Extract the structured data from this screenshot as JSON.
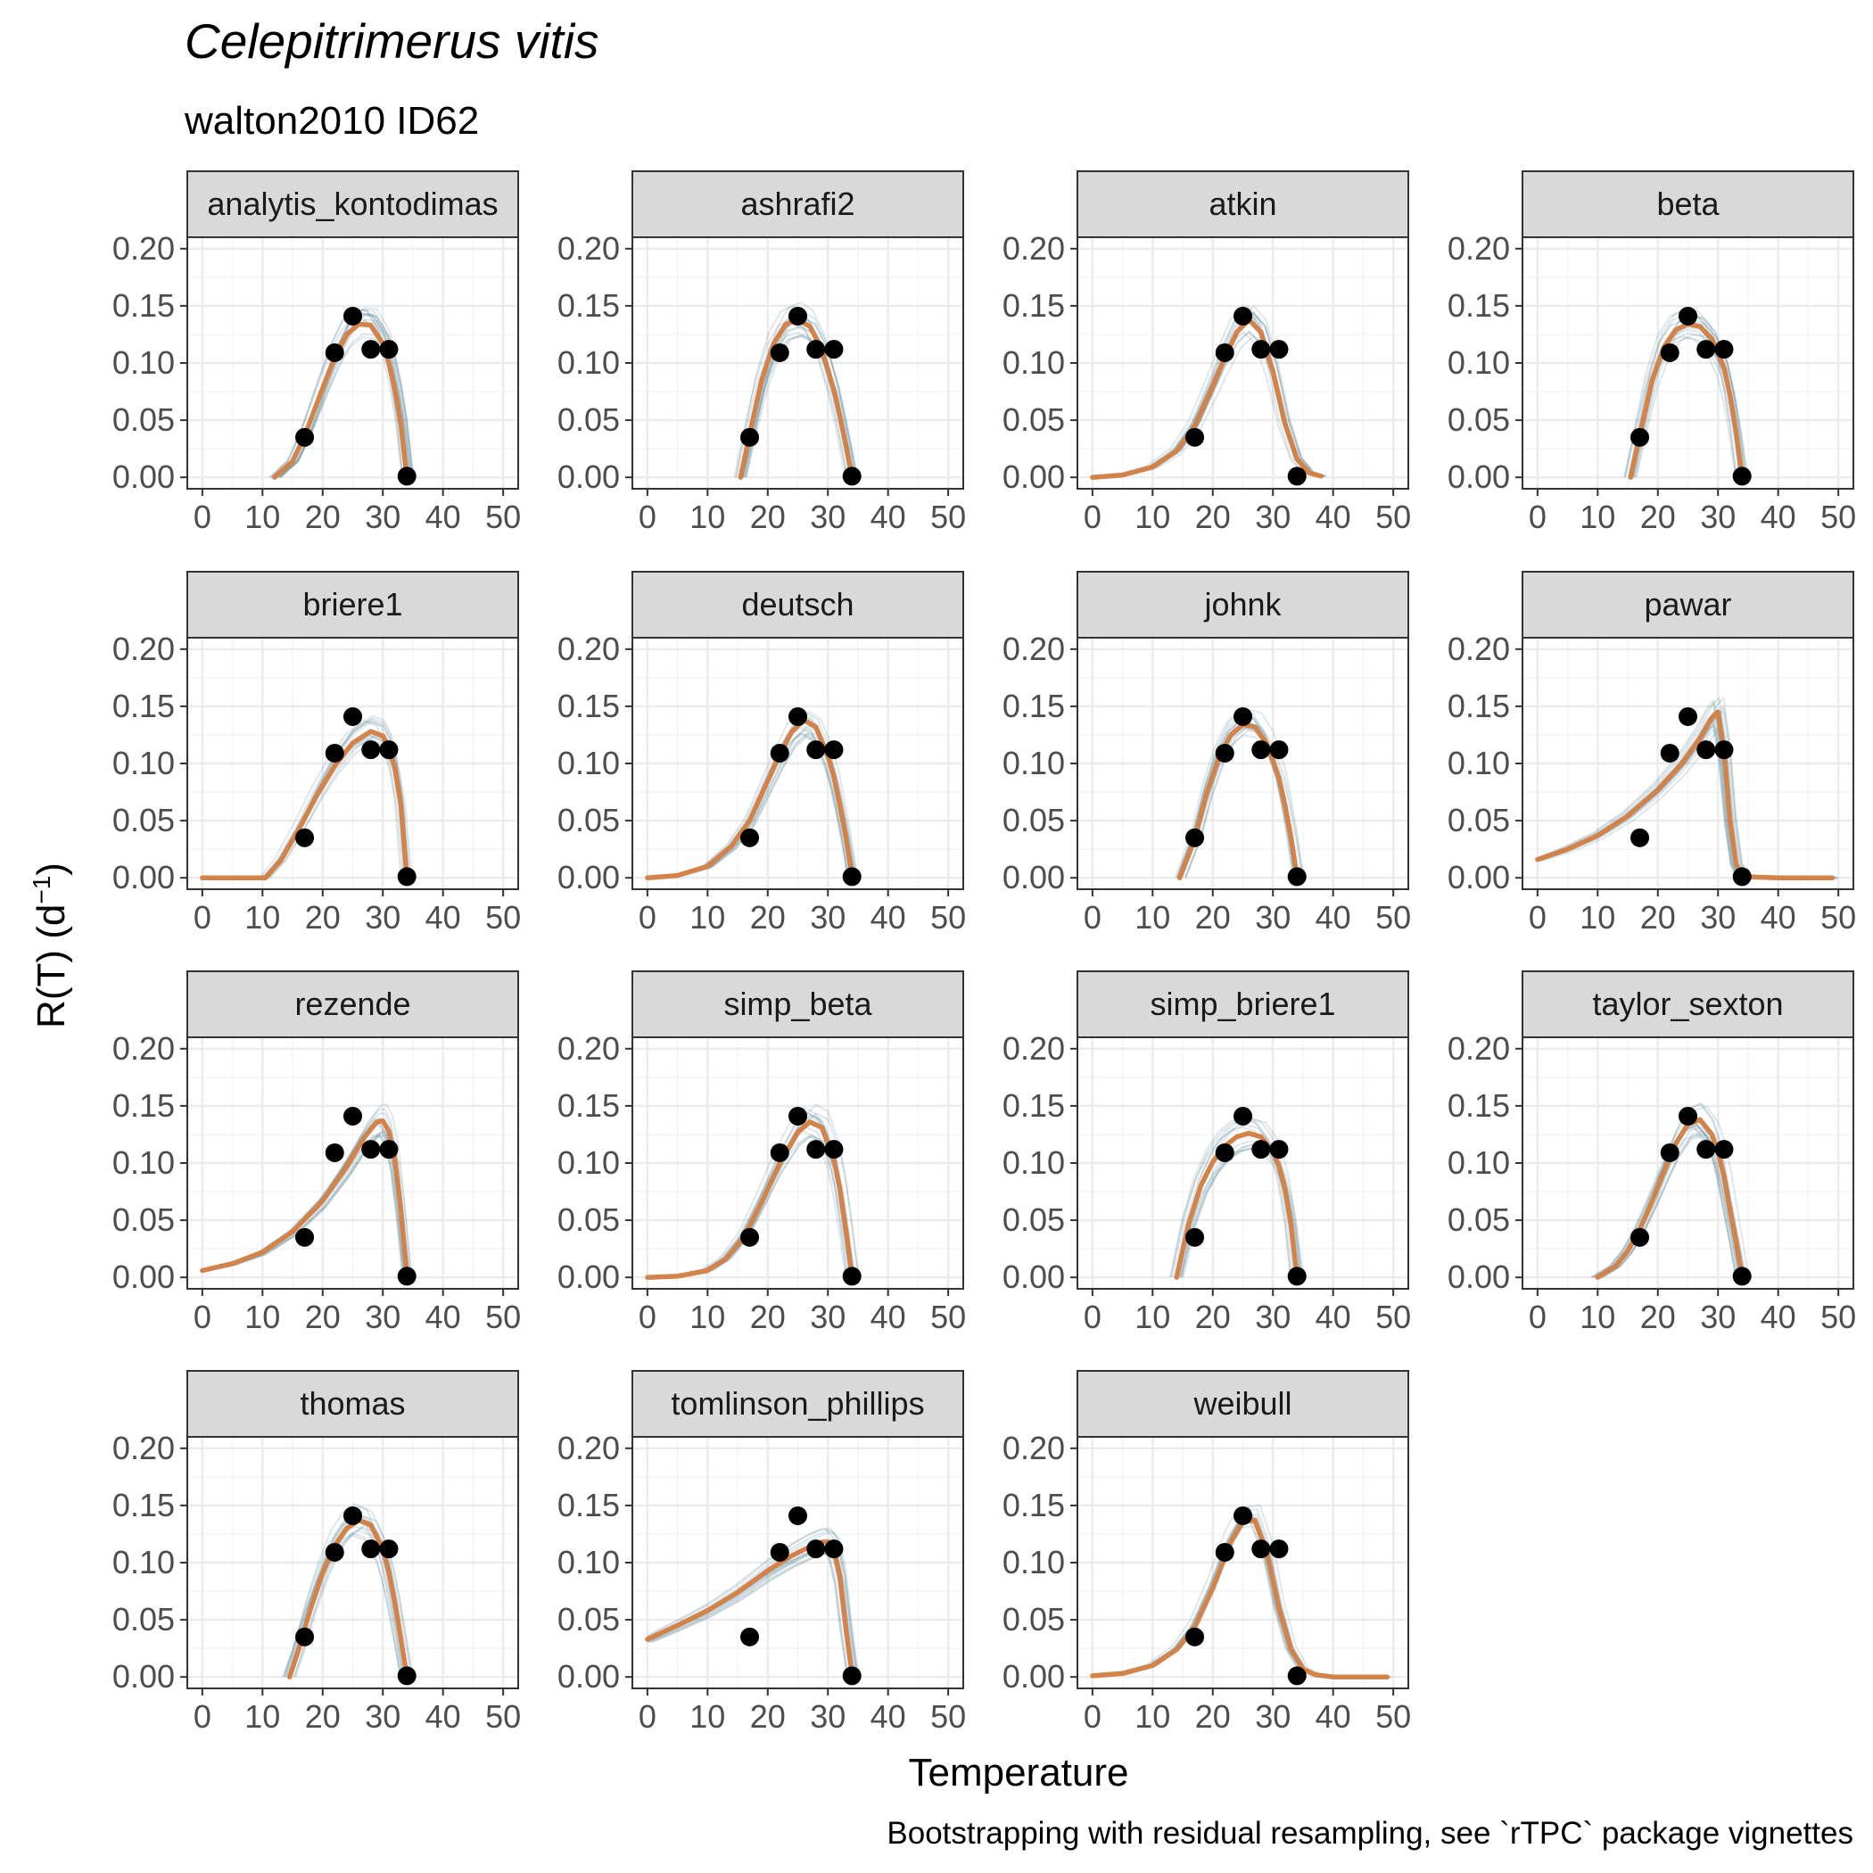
{
  "chart_data": {
    "type": "line",
    "title": "Celepitrimerus vitis",
    "subtitle": "walton2010 ID62",
    "xlabel": "Temperature",
    "ylabel": "R(T) (d",
    "ylabel_superscript": "−1",
    "ylabel_close": ")",
    "caption": "Bootstrapping with residual resampling, see `rTPC` package vignettes",
    "xlim": [
      0,
      50
    ],
    "ylim": [
      0,
      0.2
    ],
    "x_ticks": [
      "0",
      "10",
      "20",
      "30",
      "40",
      "50"
    ],
    "y_ticks": [
      "0.00",
      "0.05",
      "0.10",
      "0.15",
      "0.20"
    ],
    "grid": true,
    "colors": {
      "fit": "#d2834a",
      "bootstrap": "#4a7c92",
      "points": "#000000",
      "strip_fill": "#d9d9d9"
    },
    "observations": {
      "x": [
        17,
        22,
        25,
        28,
        31,
        34
      ],
      "y": [
        0.035,
        0.109,
        0.141,
        0.112,
        0.112,
        0.001
      ]
    },
    "panels": [
      {
        "name": "analytis_kontodimas",
        "fit": {
          "x": [
            12,
            15,
            17,
            20,
            22,
            24,
            26,
            28,
            30,
            31,
            32,
            33,
            34
          ],
          "y": [
            0.0,
            0.014,
            0.036,
            0.078,
            0.105,
            0.125,
            0.134,
            0.133,
            0.117,
            0.1,
            0.077,
            0.046,
            0.0
          ]
        }
      },
      {
        "name": "ashrafi2",
        "fit": {
          "x": [
            15.5,
            17,
            19,
            21,
            23,
            25,
            27,
            29,
            31,
            32,
            33,
            34
          ],
          "y": [
            0.0,
            0.038,
            0.085,
            0.117,
            0.134,
            0.138,
            0.132,
            0.112,
            0.076,
            0.053,
            0.027,
            0.0
          ]
        }
      },
      {
        "name": "atkin",
        "fit": {
          "x": [
            0,
            5,
            10,
            14,
            17,
            20,
            22,
            24,
            26,
            28,
            30,
            32,
            34,
            36,
            38
          ],
          "y": [
            0.0,
            0.002,
            0.009,
            0.023,
            0.045,
            0.08,
            0.105,
            0.127,
            0.138,
            0.127,
            0.093,
            0.047,
            0.016,
            0.004,
            0.001
          ]
        }
      },
      {
        "name": "beta",
        "fit": {
          "x": [
            15.5,
            17,
            19,
            21,
            23,
            25,
            27,
            29,
            31,
            32,
            33,
            34
          ],
          "y": [
            0.0,
            0.037,
            0.084,
            0.114,
            0.129,
            0.134,
            0.132,
            0.121,
            0.096,
            0.072,
            0.04,
            0.0
          ]
        }
      },
      {
        "name": "briere1",
        "fit": {
          "x": [
            0,
            10.5,
            13,
            16,
            19,
            22,
            25,
            28,
            30,
            31,
            32,
            33,
            34
          ],
          "y": [
            0.0,
            0.0,
            0.015,
            0.042,
            0.072,
            0.098,
            0.118,
            0.128,
            0.124,
            0.114,
            0.096,
            0.064,
            0.0
          ]
        }
      },
      {
        "name": "deutsch",
        "fit": {
          "x": [
            0,
            5,
            10,
            14,
            17,
            20,
            22,
            24,
            26,
            28,
            30,
            31,
            32,
            33,
            34
          ],
          "y": [
            0.0,
            0.002,
            0.01,
            0.028,
            0.05,
            0.085,
            0.108,
            0.128,
            0.138,
            0.132,
            0.107,
            0.088,
            0.063,
            0.035,
            0.002
          ]
        }
      },
      {
        "name": "johnk",
        "fit": {
          "x": [
            14.5,
            17,
            19,
            21,
            23,
            25,
            27,
            29,
            31,
            32,
            33,
            34
          ],
          "y": [
            0.0,
            0.034,
            0.074,
            0.105,
            0.125,
            0.134,
            0.132,
            0.117,
            0.087,
            0.063,
            0.035,
            0.0
          ]
        }
      },
      {
        "name": "pawar",
        "fit": {
          "x": [
            0,
            5,
            10,
            15,
            20,
            24,
            27,
            29,
            30,
            31,
            32,
            33,
            34,
            40,
            49
          ],
          "y": [
            0.016,
            0.025,
            0.037,
            0.054,
            0.077,
            0.1,
            0.122,
            0.14,
            0.145,
            0.11,
            0.05,
            0.012,
            0.001,
            0.0,
            0.0
          ]
        }
      },
      {
        "name": "rezende",
        "fit": {
          "x": [
            0,
            5,
            10,
            15,
            20,
            24,
            27,
            29,
            30,
            31,
            32,
            33,
            34
          ],
          "y": [
            0.006,
            0.012,
            0.022,
            0.04,
            0.067,
            0.097,
            0.123,
            0.136,
            0.137,
            0.128,
            0.103,
            0.058,
            0.003
          ]
        }
      },
      {
        "name": "simp_beta",
        "fit": {
          "x": [
            0,
            5,
            10,
            13,
            16,
            19,
            22,
            25,
            27,
            29,
            31,
            32,
            33,
            34
          ],
          "y": [
            0.0,
            0.001,
            0.006,
            0.016,
            0.035,
            0.066,
            0.1,
            0.127,
            0.136,
            0.131,
            0.103,
            0.077,
            0.041,
            0.002
          ]
        }
      },
      {
        "name": "simp_briere1",
        "fit": {
          "x": [
            14,
            16,
            18,
            20,
            22,
            24,
            26,
            28,
            30,
            31,
            32,
            33,
            34
          ],
          "y": [
            0.0,
            0.047,
            0.08,
            0.101,
            0.115,
            0.123,
            0.126,
            0.123,
            0.11,
            0.097,
            0.077,
            0.046,
            0.0
          ]
        }
      },
      {
        "name": "taylor_sexton",
        "fit": {
          "x": [
            10,
            13,
            15,
            17,
            19,
            21,
            23,
            25,
            27,
            29,
            30,
            31,
            32,
            33,
            34
          ],
          "y": [
            0.0,
            0.01,
            0.023,
            0.042,
            0.066,
            0.092,
            0.117,
            0.134,
            0.138,
            0.125,
            0.11,
            0.088,
            0.059,
            0.031,
            0.0
          ]
        }
      },
      {
        "name": "thomas",
        "fit": {
          "x": [
            14.5,
            16,
            18,
            20,
            22,
            24,
            26,
            28,
            30,
            31,
            32,
            33,
            34
          ],
          "y": [
            0.0,
            0.024,
            0.06,
            0.091,
            0.115,
            0.13,
            0.137,
            0.133,
            0.112,
            0.092,
            0.065,
            0.033,
            0.0
          ]
        }
      },
      {
        "name": "tomlinson_phillips",
        "fit": {
          "x": [
            0,
            5,
            10,
            15,
            20,
            24,
            27,
            29,
            30,
            31,
            32,
            33,
            34
          ],
          "y": [
            0.033,
            0.045,
            0.058,
            0.074,
            0.093,
            0.106,
            0.114,
            0.118,
            0.118,
            0.112,
            0.088,
            0.042,
            0.003
          ]
        }
      },
      {
        "name": "weibull",
        "fit": {
          "x": [
            0,
            5,
            10,
            14,
            17,
            20,
            23,
            25,
            27,
            29,
            31,
            33,
            35,
            37,
            40,
            49
          ],
          "y": [
            0.001,
            0.003,
            0.01,
            0.024,
            0.044,
            0.078,
            0.118,
            0.136,
            0.137,
            0.109,
            0.06,
            0.024,
            0.007,
            0.002,
            0.0,
            0.0
          ]
        }
      }
    ]
  }
}
